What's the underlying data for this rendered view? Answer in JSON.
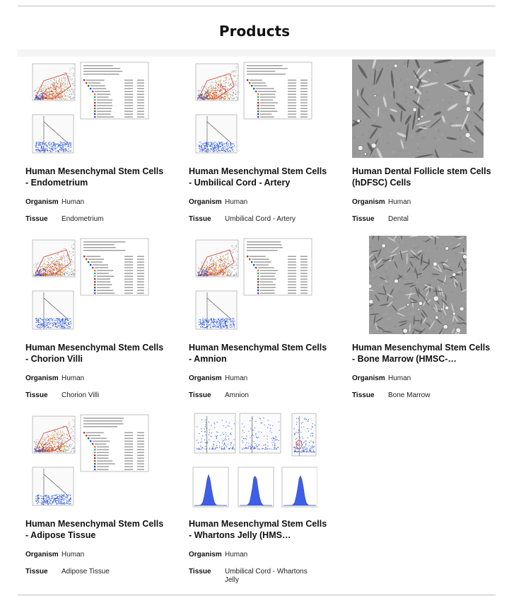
{
  "page": {
    "title": "Products"
  },
  "labels": {
    "organism": "Organism",
    "tissue": "Tissue"
  },
  "products": [
    {
      "title": "Human Mesenchymal Stem Cells - Endometrium",
      "organism": "Human",
      "tissue": "Endometrium",
      "image": "flow-cytometry"
    },
    {
      "title": "Human Mesenchymal Stem Cells - Umbilical Cord - Artery",
      "organism": "Human",
      "tissue": "Umbilical Cord - Artery",
      "image": "flow-cytometry"
    },
    {
      "title": "Human Dental Follicle stem Cells (hDFSC) Cells",
      "organism": "Human",
      "tissue": "Dental",
      "image": "cell-culture"
    },
    {
      "title": "Human Mesenchymal Stem Cells - Chorion Villi",
      "organism": "Human",
      "tissue": "Chorion Villi",
      "image": "flow-cytometry"
    },
    {
      "title": "Human Mesenchymal Stem Cells - Amnion",
      "organism": "Human",
      "tissue": "Amnion",
      "image": "flow-cytometry"
    },
    {
      "title": "Human Mesenchymal Stem Cells - Bone Marrow (HMSC-…",
      "organism": "Human",
      "tissue": "Bone Marrow",
      "image": "cell-culture"
    },
    {
      "title": "Human Mesenchymal Stem Cells - Adipose Tissue",
      "organism": "Human",
      "tissue": "Adipose Tissue",
      "image": "flow-cytometry"
    },
    {
      "title": "Human Mesenchymal Stem Cells - Whartons Jelly (HMS…",
      "organism": "Human",
      "tissue": "Umbilical Cord - Whartons Jelly",
      "image": "histograms"
    }
  ],
  "colors": {
    "gate": "#d93a2b",
    "cells": "#1f4fe0",
    "sort": "#f2a21c",
    "noise": "#707070"
  }
}
